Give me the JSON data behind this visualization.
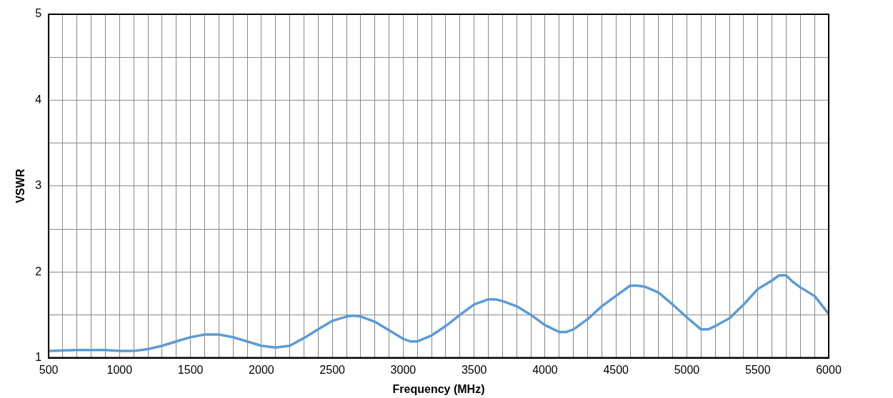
{
  "chart_data": {
    "type": "line",
    "xlabel": "Frequency (MHz)",
    "ylabel": "VSWR",
    "xlim": [
      500,
      6000
    ],
    "ylim": [
      1,
      5
    ],
    "xticks": [
      500,
      {
        "value": 600,
        "label": null
      },
      {
        "value": 700,
        "label": null
      },
      {
        "value": 800,
        "label": null
      },
      {
        "value": 900,
        "label": null
      },
      1000,
      {
        "value": 1100,
        "label": null
      },
      {
        "value": 1200,
        "label": null
      },
      {
        "value": 1300,
        "label": null
      },
      {
        "value": 1400,
        "label": null
      },
      1500,
      {
        "value": 1600,
        "label": null
      },
      {
        "value": 1700,
        "label": null
      },
      {
        "value": 1800,
        "label": null
      },
      {
        "value": 1900,
        "label": null
      },
      2000,
      {
        "value": 2100,
        "label": null
      },
      {
        "value": 2200,
        "label": null
      },
      {
        "value": 2300,
        "label": null
      },
      {
        "value": 2400,
        "label": null
      },
      2500,
      {
        "value": 2600,
        "label": null
      },
      {
        "value": 2700,
        "label": null
      },
      {
        "value": 2800,
        "label": null
      },
      {
        "value": 2900,
        "label": null
      },
      3000,
      {
        "value": 3100,
        "label": null
      },
      {
        "value": 3200,
        "label": null
      },
      {
        "value": 3300,
        "label": null
      },
      {
        "value": 3400,
        "label": null
      },
      3500,
      {
        "value": 3600,
        "label": null
      },
      {
        "value": 3700,
        "label": null
      },
      {
        "value": 3800,
        "label": null
      },
      {
        "value": 3900,
        "label": null
      },
      4000,
      {
        "value": 4100,
        "label": null
      },
      {
        "value": 4200,
        "label": null
      },
      {
        "value": 4300,
        "label": null
      },
      {
        "value": 4400,
        "label": null
      },
      4500,
      {
        "value": 4600,
        "label": null
      },
      {
        "value": 4700,
        "label": null
      },
      {
        "value": 4800,
        "label": null
      },
      {
        "value": 4900,
        "label": null
      },
      5000,
      {
        "value": 5100,
        "label": null
      },
      {
        "value": 5200,
        "label": null
      },
      {
        "value": 5300,
        "label": null
      },
      {
        "value": 5400,
        "label": null
      },
      5500,
      {
        "value": 5600,
        "label": null
      },
      {
        "value": 5700,
        "label": null
      },
      {
        "value": 5800,
        "label": null
      },
      {
        "value": 5900,
        "label": null
      },
      6000
    ],
    "yticks": [
      1,
      {
        "value": 1.5,
        "label": null
      },
      2,
      {
        "value": 2.5,
        "label": null
      },
      3,
      {
        "value": 3.5,
        "label": null
      },
      4,
      {
        "value": 4.5,
        "label": null
      },
      5
    ],
    "grid": true,
    "marker": "none",
    "line_style": "solid",
    "series": [
      {
        "color": "#5b9bd5",
        "x": [
          500,
          700,
          900,
          1000,
          1100,
          1200,
          1300,
          1400,
          1500,
          1600,
          1700,
          1800,
          1900,
          2000,
          2100,
          2200,
          2300,
          2400,
          2500,
          2600,
          2650,
          2700,
          2800,
          2900,
          3000,
          3050,
          3100,
          3200,
          3300,
          3400,
          3500,
          3600,
          3650,
          3700,
          3800,
          3900,
          4000,
          4100,
          4150,
          4200,
          4300,
          4400,
          4500,
          4600,
          4650,
          4700,
          4800,
          4900,
          5000,
          5100,
          5150,
          5200,
          5300,
          5400,
          5500,
          5600,
          5650,
          5700,
          5750,
          5800,
          5900,
          6000
        ],
        "values": [
          1.08,
          1.09,
          1.09,
          1.08,
          1.08,
          1.1,
          1.14,
          1.19,
          1.24,
          1.27,
          1.27,
          1.24,
          1.19,
          1.14,
          1.12,
          1.14,
          1.23,
          1.33,
          1.43,
          1.48,
          1.49,
          1.48,
          1.42,
          1.32,
          1.22,
          1.19,
          1.19,
          1.26,
          1.37,
          1.5,
          1.62,
          1.68,
          1.68,
          1.66,
          1.6,
          1.5,
          1.38,
          1.3,
          1.3,
          1.33,
          1.45,
          1.6,
          1.72,
          1.84,
          1.84,
          1.83,
          1.76,
          1.62,
          1.47,
          1.33,
          1.33,
          1.37,
          1.46,
          1.62,
          1.8,
          1.9,
          1.96,
          1.96,
          1.88,
          1.82,
          1.72,
          1.51
        ]
      }
    ]
  }
}
